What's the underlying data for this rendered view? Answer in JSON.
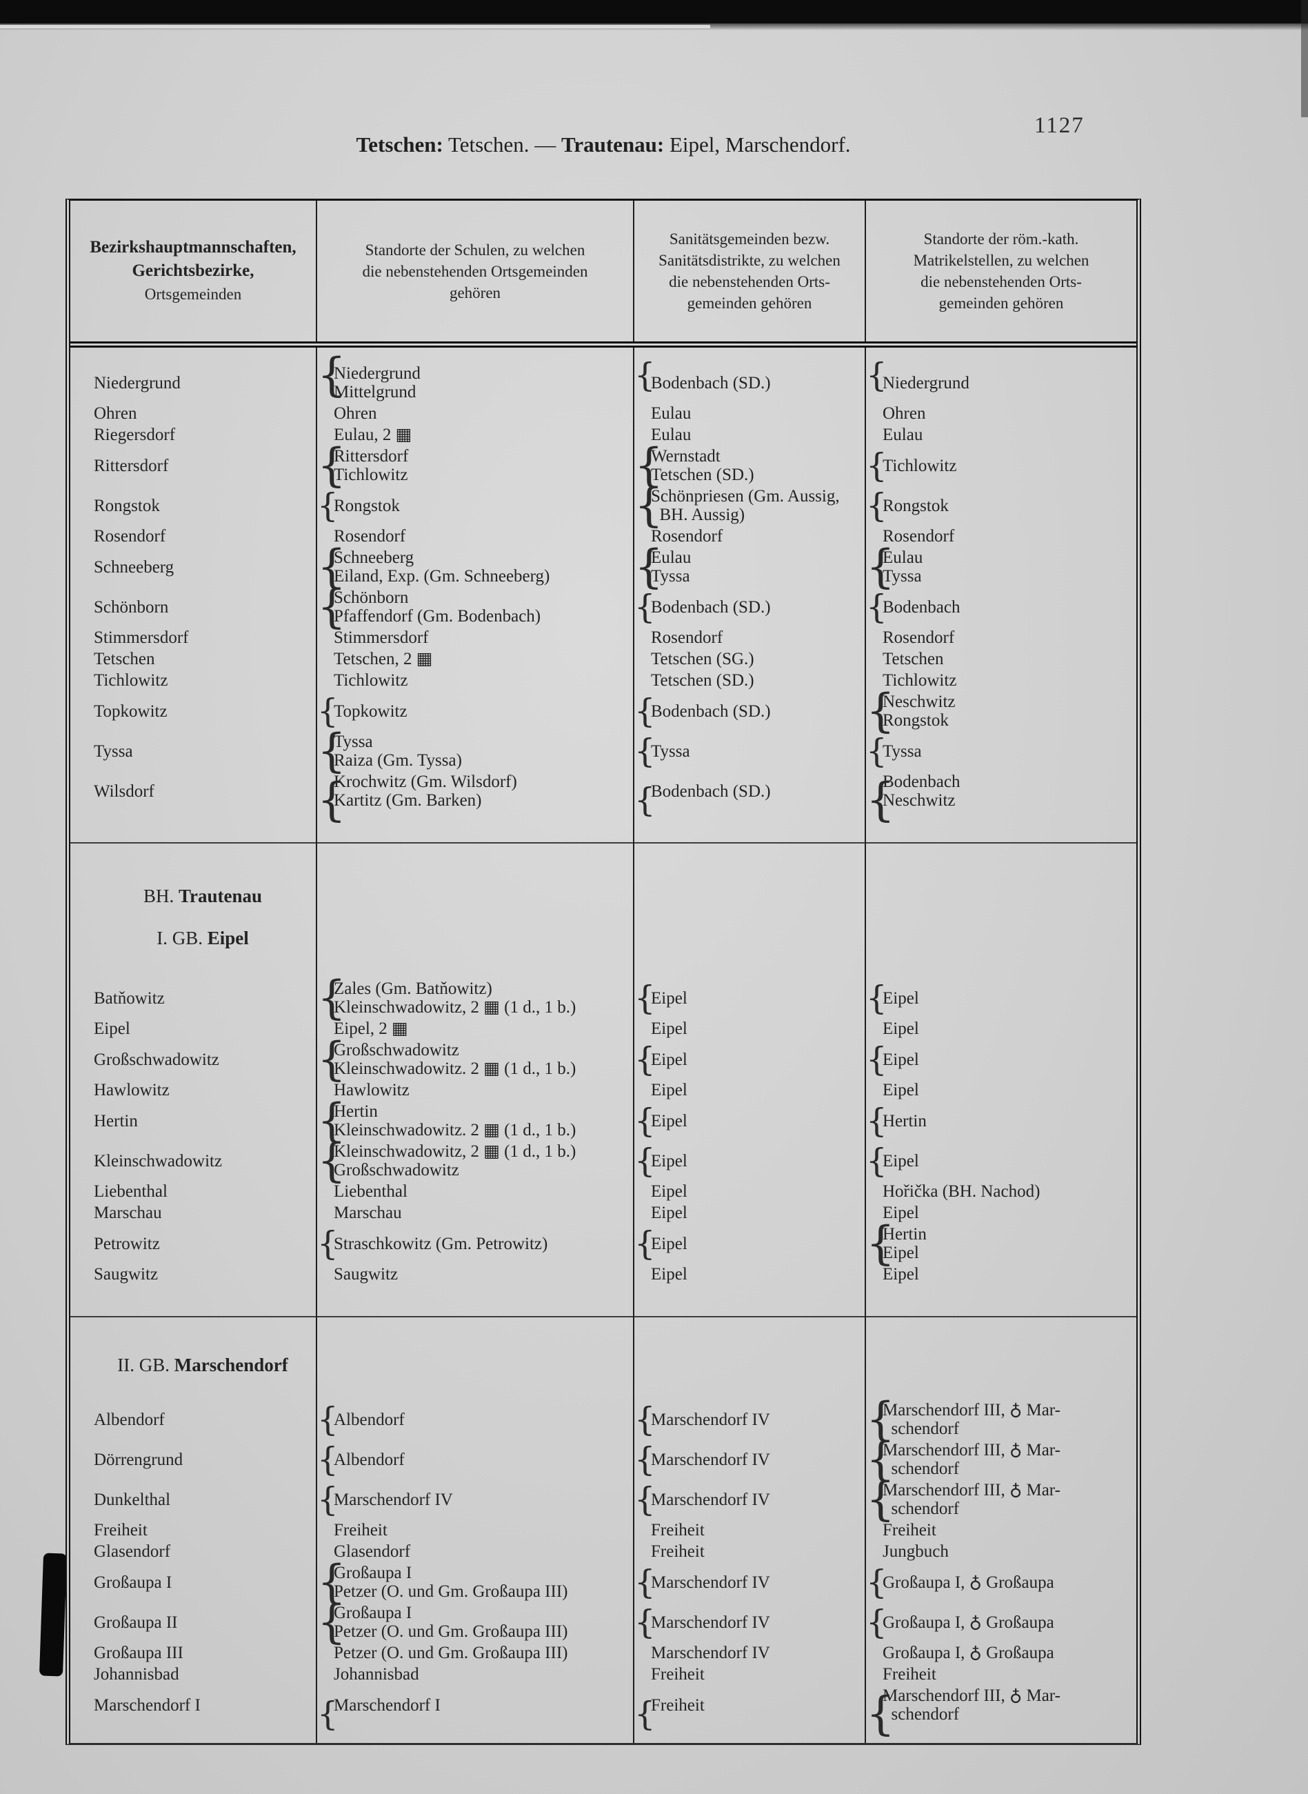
{
  "page": {
    "number": "1127",
    "title_parts": [
      {
        "text": "Tetschen:",
        "bold": true
      },
      {
        "text": " Tetschen. — ",
        "bold": false
      },
      {
        "text": "Trautenau:",
        "bold": true
      },
      {
        "text": " Eipel, Marschendorf.",
        "bold": false
      }
    ]
  },
  "symbols": {
    "school_icon": "▦",
    "church_icon": "♁"
  },
  "table": {
    "header": {
      "col1_line1": "Bezirkshauptmannschaften,",
      "col1_line2": "Gerichtsbezirke,",
      "col1_line3": "Ortsgemeinden",
      "col2": "Standorte der Schulen, zu welchen\ndie nebenstehenden Ortsgemeinden\ngehören",
      "col3": "Sanitätsgemeinden bezw.\nSanitätsdistrikte, zu welchen\ndie nebenstehenden Orts-\ngemeinden gehören",
      "col4": "Standorte der röm.-kath.\nMatrikelstellen, zu welchen\ndie nebenstehenden Orts-\ngemeinden gehören"
    },
    "sections": [
      {
        "headings": [],
        "rows": [
          {
            "c1": {
              "lines": [
                "Niedergrund"
              ]
            },
            "c2": {
              "brace": true,
              "lines": [
                "Niedergrund",
                "Mittelgrund"
              ]
            },
            "c3": {
              "brace": true,
              "lines": [
                "Bodenbach (SD.)"
              ]
            },
            "c4": {
              "brace": true,
              "lines": [
                "Niedergrund"
              ]
            }
          },
          {
            "c1": {
              "lines": [
                "Ohren"
              ]
            },
            "c2": {
              "lines": [
                "Ohren"
              ]
            },
            "c3": {
              "lines": [
                "Eulau"
              ]
            },
            "c4": {
              "lines": [
                "Ohren"
              ]
            }
          },
          {
            "c1": {
              "lines": [
                "Riegersdorf"
              ]
            },
            "c2": {
              "lines": [
                "Eulau, 2 ▦"
              ]
            },
            "c3": {
              "lines": [
                "Eulau"
              ]
            },
            "c4": {
              "lines": [
                "Eulau"
              ]
            }
          },
          {
            "c1": {
              "lines": [
                "Rittersdorf"
              ]
            },
            "c2": {
              "brace": true,
              "lines": [
                "Rittersdorf",
                "Tichlowitz"
              ]
            },
            "c3": {
              "brace": true,
              "lines": [
                "Wernstadt",
                "Tetschen (SD.)"
              ]
            },
            "c4": {
              "brace": true,
              "lines": [
                "Tichlowitz"
              ]
            }
          },
          {
            "c1": {
              "lines": [
                "Rongstok"
              ]
            },
            "c2": {
              "brace": true,
              "lines": [
                "Rongstok"
              ]
            },
            "c3": {
              "brace": true,
              "lines": [
                "Schönpriesen (Gm. Aussig,",
                "  BH. Aussig)"
              ]
            },
            "c4": {
              "brace": true,
              "lines": [
                "Rongstok"
              ]
            }
          },
          {
            "c1": {
              "lines": [
                "Rosendorf"
              ]
            },
            "c2": {
              "lines": [
                "Rosendorf"
              ]
            },
            "c3": {
              "lines": [
                "Rosendorf"
              ]
            },
            "c4": {
              "lines": [
                "Rosendorf"
              ]
            }
          },
          {
            "c1": {
              "lines": [
                "Schneeberg"
              ]
            },
            "c2": {
              "brace": true,
              "lines": [
                "Schneeberg",
                "Eiland, Exp. (Gm. Schneeberg)"
              ]
            },
            "c3": {
              "brace": true,
              "lines": [
                "Eulau",
                "Tyssa"
              ]
            },
            "c4": {
              "brace": true,
              "lines": [
                "Eulau",
                "Tyssa"
              ]
            }
          },
          {
            "c1": {
              "lines": [
                "Schönborn"
              ]
            },
            "c2": {
              "brace": true,
              "lines": [
                "Schönborn",
                "Pfaffendorf (Gm. Bodenbach)"
              ]
            },
            "c3": {
              "brace": true,
              "lines": [
                "Bodenbach (SD.)"
              ]
            },
            "c4": {
              "brace": true,
              "lines": [
                "Bodenbach"
              ]
            }
          },
          {
            "c1": {
              "lines": [
                "Stimmersdorf"
              ]
            },
            "c2": {
              "lines": [
                "Stimmersdorf"
              ]
            },
            "c3": {
              "lines": [
                "Rosendorf"
              ]
            },
            "c4": {
              "lines": [
                "Rosendorf"
              ]
            }
          },
          {
            "c1": {
              "lines": [
                "Tetschen"
              ]
            },
            "c2": {
              "lines": [
                "Tetschen, 2 ▦"
              ]
            },
            "c3": {
              "lines": [
                "Tetschen (SG.)"
              ]
            },
            "c4": {
              "lines": [
                "Tetschen"
              ]
            }
          },
          {
            "c1": {
              "lines": [
                "Tichlowitz"
              ]
            },
            "c2": {
              "lines": [
                "Tichlowitz"
              ]
            },
            "c3": {
              "lines": [
                "Tetschen (SD.)"
              ]
            },
            "c4": {
              "lines": [
                "Tichlowitz"
              ]
            }
          },
          {
            "c1": {
              "lines": [
                "Topkowitz"
              ]
            },
            "c2": {
              "brace": true,
              "lines": [
                "Topkowitz"
              ]
            },
            "c3": {
              "brace": true,
              "lines": [
                "Bodenbach (SD.)"
              ]
            },
            "c4": {
              "brace": true,
              "lines": [
                "Neschwitz",
                "Rongstok"
              ]
            }
          },
          {
            "c1": {
              "lines": [
                "Tyssa"
              ]
            },
            "c2": {
              "brace": true,
              "lines": [
                "Tyssa",
                "Raiza (Gm. Tyssa)"
              ]
            },
            "c3": {
              "brace": true,
              "lines": [
                "Tyssa"
              ]
            },
            "c4": {
              "brace": true,
              "lines": [
                "Tyssa"
              ]
            }
          },
          {
            "c1": {
              "lines": [
                "Wilsdorf"
              ]
            },
            "c2": {
              "brace": true,
              "lines": [
                "Krochwitz (Gm. Wilsdorf)",
                "Kartitz (Gm. Barken)"
              ]
            },
            "c3": {
              "brace": true,
              "lines": [
                "Bodenbach (SD.)"
              ]
            },
            "c4": {
              "brace": true,
              "lines": [
                "Bodenbach",
                "Neschwitz"
              ]
            }
          }
        ]
      },
      {
        "headings": [
          {
            "prefix": "BH. ",
            "name": "Trautenau"
          },
          {
            "prefix": "I. GB. ",
            "name": "Eipel"
          }
        ],
        "rows": [
          {
            "c1": {
              "lines": [
                "Batňowitz"
              ]
            },
            "c2": {
              "brace": true,
              "lines": [
                "Zales (Gm. Batňowitz)",
                "Kleinschwadowitz, 2 ▦ (1 d., 1 b.)"
              ]
            },
            "c3": {
              "brace": true,
              "lines": [
                "Eipel"
              ]
            },
            "c4": {
              "brace": true,
              "lines": [
                "Eipel"
              ]
            }
          },
          {
            "c1": {
              "lines": [
                "Eipel"
              ]
            },
            "c2": {
              "lines": [
                "Eipel, 2 ▦"
              ]
            },
            "c3": {
              "lines": [
                "Eipel"
              ]
            },
            "c4": {
              "lines": [
                "Eipel"
              ]
            }
          },
          {
            "c1": {
              "lines": [
                "Großschwadowitz"
              ]
            },
            "c2": {
              "brace": true,
              "lines": [
                "Großschwadowitz",
                "Kleinschwadowitz. 2 ▦ (1 d., 1 b.)"
              ]
            },
            "c3": {
              "brace": true,
              "lines": [
                "Eipel"
              ]
            },
            "c4": {
              "brace": true,
              "lines": [
                "Eipel"
              ]
            }
          },
          {
            "c1": {
              "lines": [
                "Hawlowitz"
              ]
            },
            "c2": {
              "lines": [
                "Hawlowitz"
              ]
            },
            "c3": {
              "lines": [
                "Eipel"
              ]
            },
            "c4": {
              "lines": [
                "Eipel"
              ]
            }
          },
          {
            "c1": {
              "lines": [
                "Hertin"
              ]
            },
            "c2": {
              "brace": true,
              "lines": [
                "Hertin",
                "Kleinschwadowitz. 2 ▦ (1 d., 1 b.)"
              ]
            },
            "c3": {
              "brace": true,
              "lines": [
                "Eipel"
              ]
            },
            "c4": {
              "brace": true,
              "lines": [
                "Hertin"
              ]
            }
          },
          {
            "c1": {
              "lines": [
                "Kleinschwadowitz"
              ]
            },
            "c2": {
              "brace": true,
              "lines": [
                "Kleinschwadowitz, 2 ▦ (1 d., 1 b.)",
                "Großschwadowitz"
              ]
            },
            "c3": {
              "brace": true,
              "lines": [
                "Eipel"
              ]
            },
            "c4": {
              "brace": true,
              "lines": [
                "Eipel"
              ]
            }
          },
          {
            "c1": {
              "lines": [
                "Liebenthal"
              ]
            },
            "c2": {
              "lines": [
                "Liebenthal"
              ]
            },
            "c3": {
              "lines": [
                "Eipel"
              ]
            },
            "c4": {
              "lines": [
                "Hořička (BH. Nachod)"
              ]
            }
          },
          {
            "c1": {
              "lines": [
                "Marschau"
              ]
            },
            "c2": {
              "lines": [
                "Marschau"
              ]
            },
            "c3": {
              "lines": [
                "Eipel"
              ]
            },
            "c4": {
              "lines": [
                "Eipel"
              ]
            }
          },
          {
            "c1": {
              "lines": [
                "Petrowitz"
              ]
            },
            "c2": {
              "brace": true,
              "lines": [
                "Straschkowitz (Gm. Petrowitz)"
              ]
            },
            "c3": {
              "brace": true,
              "lines": [
                "Eipel"
              ]
            },
            "c4": {
              "brace": true,
              "lines": [
                "Hertin",
                "Eipel"
              ]
            }
          },
          {
            "c1": {
              "lines": [
                "Saugwitz"
              ]
            },
            "c2": {
              "lines": [
                "Saugwitz"
              ]
            },
            "c3": {
              "lines": [
                "Eipel"
              ]
            },
            "c4": {
              "lines": [
                "Eipel"
              ]
            }
          }
        ]
      },
      {
        "headings": [
          {
            "prefix": "II. GB. ",
            "name": "Marschendorf"
          }
        ],
        "rows": [
          {
            "c1": {
              "lines": [
                "Albendorf"
              ]
            },
            "c2": {
              "brace": true,
              "lines": [
                "Albendorf"
              ]
            },
            "c3": {
              "brace": true,
              "lines": [
                "Marschendorf IV"
              ]
            },
            "c4": {
              "brace": true,
              "lines": [
                "Marschendorf III, ♁ Mar-",
                "  schendorf"
              ]
            }
          },
          {
            "c1": {
              "lines": [
                "Dörrengrund"
              ]
            },
            "c2": {
              "brace": true,
              "lines": [
                "Albendorf"
              ]
            },
            "c3": {
              "brace": true,
              "lines": [
                "Marschendorf IV"
              ]
            },
            "c4": {
              "brace": true,
              "lines": [
                "Marschendorf III, ♁ Mar-",
                "  schendorf"
              ]
            }
          },
          {
            "c1": {
              "lines": [
                "Dunkelthal"
              ]
            },
            "c2": {
              "brace": true,
              "lines": [
                "Marschendorf IV"
              ]
            },
            "c3": {
              "brace": true,
              "lines": [
                "Marschendorf IV"
              ]
            },
            "c4": {
              "brace": true,
              "lines": [
                "Marschendorf III, ♁ Mar-",
                "  schendorf"
              ]
            }
          },
          {
            "c1": {
              "lines": [
                "Freiheit"
              ]
            },
            "c2": {
              "lines": [
                "Freiheit"
              ]
            },
            "c3": {
              "lines": [
                "Freiheit"
              ]
            },
            "c4": {
              "lines": [
                "Freiheit"
              ]
            }
          },
          {
            "c1": {
              "lines": [
                "Glasendorf"
              ]
            },
            "c2": {
              "lines": [
                "Glasendorf"
              ]
            },
            "c3": {
              "lines": [
                "Freiheit"
              ]
            },
            "c4": {
              "lines": [
                "Jungbuch"
              ]
            }
          },
          {
            "c1": {
              "lines": [
                "Großaupa I"
              ]
            },
            "c2": {
              "brace": true,
              "lines": [
                "Großaupa I",
                "Petzer (O. und Gm. Großaupa III)"
              ]
            },
            "c3": {
              "brace": true,
              "lines": [
                "Marschendorf IV"
              ]
            },
            "c4": {
              "brace": true,
              "lines": [
                "Großaupa I, ♁ Großaupa"
              ]
            }
          },
          {
            "c1": {
              "lines": [
                "Großaupa II"
              ]
            },
            "c2": {
              "brace": true,
              "lines": [
                "Großaupa I",
                "Petzer (O. und Gm. Großaupa III)"
              ]
            },
            "c3": {
              "brace": true,
              "lines": [
                "Marschendorf IV"
              ]
            },
            "c4": {
              "brace": true,
              "lines": [
                "Großaupa I, ♁ Großaupa"
              ]
            }
          },
          {
            "c1": {
              "lines": [
                "Großaupa III"
              ]
            },
            "c2": {
              "lines": [
                "Petzer (O. und Gm. Großaupa III)"
              ]
            },
            "c3": {
              "lines": [
                "Marschendorf IV"
              ]
            },
            "c4": {
              "lines": [
                "Großaupa I, ♁ Großaupa"
              ]
            }
          },
          {
            "c1": {
              "lines": [
                "Johannisbad"
              ]
            },
            "c2": {
              "lines": [
                "Johannisbad"
              ]
            },
            "c3": {
              "lines": [
                "Freiheit"
              ]
            },
            "c4": {
              "lines": [
                "Freiheit"
              ]
            }
          },
          {
            "c1": {
              "lines": [
                "Marschendorf I"
              ]
            },
            "c2": {
              "brace": true,
              "lines": [
                "Marschendorf I"
              ]
            },
            "c3": {
              "brace": true,
              "lines": [
                "Freiheit"
              ]
            },
            "c4": {
              "brace": true,
              "lines": [
                "Marschendorf III, ♁ Mar-",
                "  schendorf"
              ]
            }
          }
        ]
      }
    ]
  }
}
